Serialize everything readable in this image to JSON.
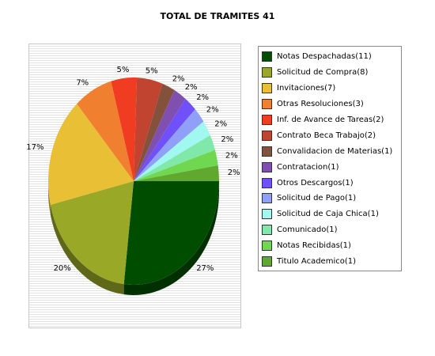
{
  "chart_data": {
    "type": "pie",
    "title": "TOTAL DE TRAMITES 41",
    "slices": [
      {
        "label": "Notas Despachadas(11)",
        "value": 11,
        "pct_label": "27%",
        "color": "#004d00"
      },
      {
        "label": "Solicitud de Compra(8)",
        "value": 8,
        "pct_label": "20%",
        "color": "#9aa828"
      },
      {
        "label": "Invitaciones(7)",
        "value": 7,
        "pct_label": "17%",
        "color": "#e8bf35"
      },
      {
        "label": "Otras Resoluciones(3)",
        "value": 3,
        "pct_label": "7%",
        "color": "#f08030"
      },
      {
        "label": "Inf. de Avance de Tareas(2)",
        "value": 2,
        "pct_label": "5%",
        "color": "#f03c20"
      },
      {
        "label": "Contrato Beca Trabajo(2)",
        "value": 2,
        "pct_label": "5%",
        "color": "#c04430"
      },
      {
        "label": "Convalidacion de Materias(1)",
        "value": 1,
        "pct_label": "2%",
        "color": "#84523c"
      },
      {
        "label": "Contratacion(1)",
        "value": 1,
        "pct_label": "2%",
        "color": "#8050b0"
      },
      {
        "label": "Otros Descargos(1)",
        "value": 1,
        "pct_label": "2%",
        "color": "#7050f8"
      },
      {
        "label": "Solicitud de Pago(1)",
        "value": 1,
        "pct_label": "2%",
        "color": "#90a0f8"
      },
      {
        "label": "Solicitud de Caja Chica(1)",
        "value": 1,
        "pct_label": "2%",
        "color": "#a0f8f0"
      },
      {
        "label": "Comunicado(1)",
        "value": 1,
        "pct_label": "2%",
        "color": "#80e8a8"
      },
      {
        "label": "Notas Recibidas(1)",
        "value": 1,
        "pct_label": "2%",
        "color": "#70d850"
      },
      {
        "label": "Titulo Academico(1)",
        "value": 1,
        "pct_label": "2%",
        "color": "#60a830"
      }
    ],
    "legend": "right"
  }
}
